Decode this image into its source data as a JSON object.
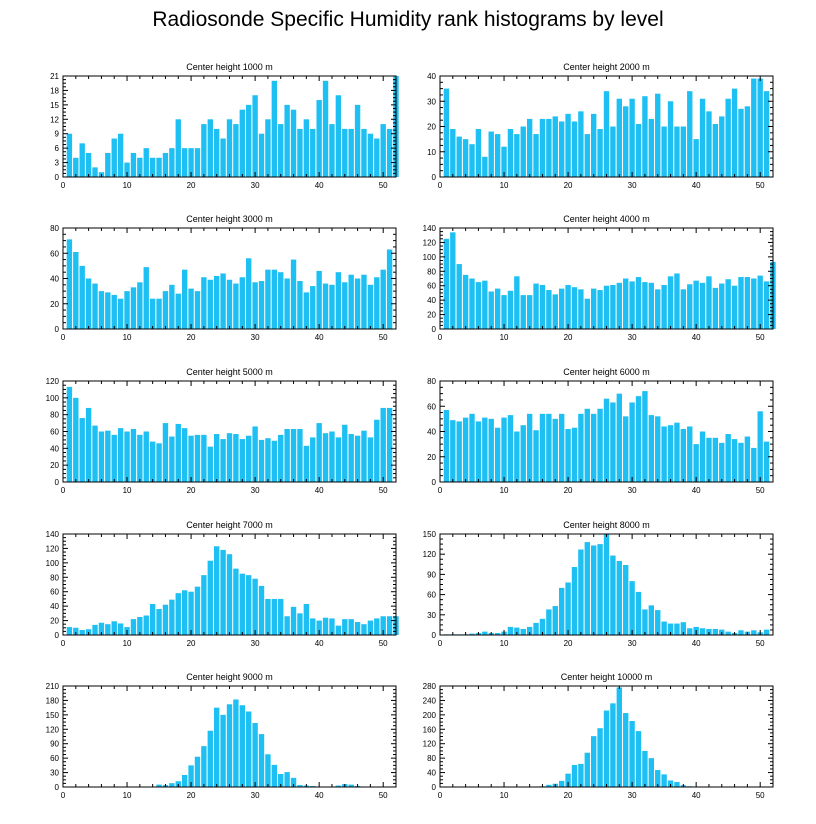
{
  "title": "Radiosonde Specific Humidity rank histograms by level",
  "colors": {
    "bar": "#1ec0f4",
    "axis": "#000000"
  },
  "chart_data": [
    {
      "type": "bar",
      "title": "Center height 1000 m",
      "xlim": [
        0,
        52
      ],
      "xticks": [
        0,
        10,
        20,
        30,
        40,
        50
      ],
      "ylim": [
        0,
        21
      ],
      "yticks": [
        0,
        3,
        6,
        9,
        12,
        15,
        18,
        21
      ],
      "values": [
        9,
        4,
        7,
        5,
        2,
        1,
        5,
        8,
        9,
        3,
        5,
        4,
        6,
        4,
        4,
        5,
        6,
        12,
        6,
        6,
        6,
        11,
        12,
        10,
        8,
        12,
        11,
        14,
        15,
        17,
        9,
        12,
        20,
        11,
        15,
        14,
        10,
        12,
        10,
        16,
        20,
        11,
        17,
        10,
        10,
        15,
        10,
        9,
        8,
        11,
        10,
        21
      ]
    },
    {
      "type": "bar",
      "title": "Center height 2000 m",
      "xlim": [
        0,
        52
      ],
      "xticks": [
        0,
        10,
        20,
        30,
        40,
        50
      ],
      "ylim": [
        0,
        40
      ],
      "yticks": [
        0,
        10,
        20,
        30,
        40
      ],
      "values": [
        35,
        19,
        16,
        15,
        13,
        19,
        8,
        18,
        17,
        12,
        19,
        17,
        20,
        23,
        17,
        23,
        23,
        24,
        22,
        25,
        22,
        26,
        17,
        25,
        19,
        34,
        20,
        31,
        28,
        31,
        21,
        32,
        23,
        33,
        20,
        30,
        20,
        20,
        34,
        15,
        31,
        26,
        21,
        24,
        31,
        35,
        27,
        28,
        39,
        39,
        34
      ]
    },
    {
      "type": "bar",
      "title": "Center height 3000 m",
      "xlim": [
        0,
        52
      ],
      "xticks": [
        0,
        10,
        20,
        30,
        40,
        50
      ],
      "ylim": [
        0,
        80
      ],
      "yticks": [
        0,
        20,
        40,
        60,
        80
      ],
      "values": [
        71,
        61,
        50,
        40,
        36,
        30,
        29,
        27,
        24,
        30,
        33,
        37,
        49,
        24,
        24,
        30,
        35,
        28,
        47,
        32,
        30,
        41,
        39,
        42,
        44,
        39,
        36,
        41,
        56,
        37,
        38,
        47,
        47,
        45,
        40,
        55,
        38,
        29,
        34,
        46,
        36,
        35,
        45,
        37,
        43,
        40,
        43,
        35,
        41,
        47,
        63
      ]
    },
    {
      "type": "bar",
      "title": "Center height 4000 m",
      "xlim": [
        0,
        52
      ],
      "xticks": [
        0,
        10,
        20,
        30,
        40,
        50
      ],
      "ylim": [
        0,
        140
      ],
      "yticks": [
        0,
        20,
        40,
        60,
        80,
        100,
        120,
        140
      ],
      "values": [
        125,
        134,
        90,
        75,
        70,
        65,
        67,
        52,
        56,
        47,
        53,
        73,
        47,
        47,
        63,
        61,
        54,
        48,
        56,
        61,
        58,
        55,
        42,
        56,
        54,
        60,
        61,
        64,
        70,
        66,
        72,
        65,
        64,
        55,
        61,
        73,
        77,
        55,
        62,
        67,
        64,
        73,
        57,
        63,
        69,
        60,
        72,
        72,
        70,
        74,
        66,
        93
      ]
    },
    {
      "type": "bar",
      "title": "Center height 5000 m",
      "xlim": [
        0,
        52
      ],
      "xticks": [
        0,
        10,
        20,
        30,
        40,
        50
      ],
      "ylim": [
        0,
        120
      ],
      "yticks": [
        0,
        20,
        40,
        60,
        80,
        100,
        120
      ],
      "values": [
        113,
        100,
        76,
        88,
        67,
        60,
        61,
        56,
        64,
        60,
        63,
        56,
        60,
        48,
        46,
        70,
        54,
        69,
        64,
        55,
        56,
        56,
        42,
        57,
        51,
        58,
        57,
        51,
        55,
        66,
        50,
        52,
        49,
        56,
        63,
        63,
        63,
        43,
        53,
        70,
        58,
        60,
        53,
        68,
        57,
        55,
        61,
        53,
        74,
        88,
        88
      ]
    },
    {
      "type": "bar",
      "title": "Center height 6000 m",
      "xlim": [
        0,
        52
      ],
      "xticks": [
        0,
        10,
        20,
        30,
        40,
        50
      ],
      "ylim": [
        0,
        80
      ],
      "yticks": [
        0,
        20,
        40,
        60,
        80
      ],
      "values": [
        57,
        49,
        48,
        51,
        54,
        48,
        51,
        50,
        43,
        51,
        53,
        40,
        45,
        54,
        41,
        54,
        54,
        50,
        54,
        42,
        43,
        54,
        58,
        54,
        58,
        66,
        63,
        70,
        52,
        63,
        68,
        72,
        53,
        52,
        44,
        45,
        47,
        42,
        44,
        30,
        40,
        35,
        35,
        31,
        38,
        34,
        31,
        36,
        27,
        56,
        32
      ]
    },
    {
      "type": "bar",
      "title": "Center height 7000 m",
      "xlim": [
        0,
        52
      ],
      "xticks": [
        0,
        10,
        20,
        30,
        40,
        50
      ],
      "ylim": [
        0,
        140
      ],
      "yticks": [
        0,
        20,
        40,
        60,
        80,
        100,
        120,
        140
      ],
      "values": [
        11,
        10,
        7,
        8,
        14,
        17,
        15,
        19,
        16,
        11,
        22,
        25,
        27,
        43,
        36,
        42,
        49,
        58,
        62,
        60,
        67,
        83,
        103,
        123,
        118,
        112,
        92,
        85,
        83,
        78,
        68,
        50,
        50,
        50,
        26,
        39,
        30,
        43,
        23,
        20,
        24,
        23,
        13,
        22,
        22,
        18,
        15,
        20,
        23,
        26,
        26,
        26
      ]
    },
    {
      "type": "bar",
      "title": "Center height 8000 m",
      "xlim": [
        0,
        52
      ],
      "xticks": [
        0,
        10,
        20,
        30,
        40,
        50
      ],
      "ylim": [
        0,
        150
      ],
      "yticks": [
        0,
        30,
        60,
        90,
        120,
        150
      ],
      "values": [
        1,
        1,
        1,
        1,
        2,
        3,
        5,
        3,
        3,
        5,
        12,
        11,
        9,
        12,
        18,
        24,
        38,
        43,
        70,
        78,
        101,
        127,
        138,
        133,
        135,
        150,
        118,
        110,
        104,
        80,
        64,
        38,
        44,
        37,
        20,
        17,
        17,
        19,
        10,
        12,
        10,
        9,
        9,
        8,
        5,
        3,
        7,
        5,
        7,
        4,
        8
      ]
    },
    {
      "type": "bar",
      "title": "Center height 9000 m",
      "xlim": [
        0,
        52
      ],
      "xticks": [
        0,
        10,
        20,
        30,
        40,
        50
      ],
      "ylim": [
        0,
        210
      ],
      "yticks": [
        0,
        30,
        60,
        90,
        120,
        150,
        180,
        210
      ],
      "values": [
        0,
        0,
        0,
        0,
        0,
        0,
        0,
        0,
        0,
        0,
        0,
        0,
        0,
        0,
        5,
        4,
        8,
        12,
        25,
        45,
        63,
        85,
        117,
        165,
        150,
        172,
        182,
        170,
        157,
        133,
        110,
        68,
        46,
        27,
        31,
        19,
        4,
        3,
        2,
        1,
        1,
        1,
        3,
        6,
        5,
        2,
        0,
        0,
        0,
        0,
        0
      ]
    },
    {
      "type": "bar",
      "title": "Center height 10000 m",
      "xlim": [
        0,
        52
      ],
      "xticks": [
        0,
        10,
        20,
        30,
        40,
        50
      ],
      "ylim": [
        0,
        280
      ],
      "yticks": [
        0,
        40,
        80,
        120,
        160,
        200,
        240,
        280
      ],
      "values": [
        0,
        0,
        0,
        0,
        0,
        0,
        0,
        0,
        0,
        0,
        0,
        0,
        0,
        0,
        0,
        2,
        6,
        9,
        17,
        37,
        61,
        64,
        95,
        141,
        163,
        212,
        232,
        276,
        205,
        183,
        155,
        100,
        80,
        47,
        35,
        18,
        14,
        5,
        2,
        1,
        1,
        1,
        0,
        0,
        0,
        0,
        0,
        0,
        0,
        0,
        0
      ]
    }
  ]
}
